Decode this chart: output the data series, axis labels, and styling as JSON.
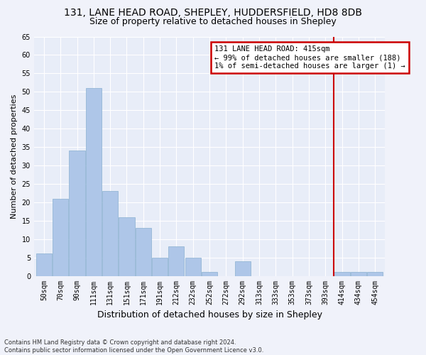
{
  "title1": "131, LANE HEAD ROAD, SHEPLEY, HUDDERSFIELD, HD8 8DB",
  "title2": "Size of property relative to detached houses in Shepley",
  "xlabel": "Distribution of detached houses by size in Shepley",
  "ylabel": "Number of detached properties",
  "footer1": "Contains HM Land Registry data © Crown copyright and database right 2024.",
  "footer2": "Contains public sector information licensed under the Open Government Licence v3.0.",
  "bar_labels": [
    "50sqm",
    "70sqm",
    "90sqm",
    "111sqm",
    "131sqm",
    "151sqm",
    "171sqm",
    "191sqm",
    "212sqm",
    "232sqm",
    "252sqm",
    "272sqm",
    "292sqm",
    "313sqm",
    "333sqm",
    "353sqm",
    "373sqm",
    "393sqm",
    "414sqm",
    "434sqm",
    "454sqm"
  ],
  "bar_values": [
    6,
    21,
    34,
    51,
    23,
    16,
    13,
    5,
    8,
    5,
    1,
    0,
    4,
    0,
    0,
    0,
    0,
    0,
    1,
    1,
    1
  ],
  "bar_color": "#aec6e8",
  "bar_edge_color": "#8ab0d0",
  "vline_index": 18,
  "vline_color": "#cc0000",
  "annotation_title": "131 LANE HEAD ROAD: 415sqm",
  "annotation_line1": "← 99% of detached houses are smaller (188)",
  "annotation_line2": "1% of semi-detached houses are larger (1) →",
  "annotation_box_facecolor": "#ffffff",
  "annotation_box_edgecolor": "#cc0000",
  "ylim": [
    0,
    65
  ],
  "yticks": [
    0,
    5,
    10,
    15,
    20,
    25,
    30,
    35,
    40,
    45,
    50,
    55,
    60,
    65
  ],
  "bg_color": "#e8edf8",
  "grid_color": "#ffffff",
  "title1_fontsize": 10,
  "title2_fontsize": 9,
  "ylabel_fontsize": 8,
  "xlabel_fontsize": 9,
  "tick_fontsize": 7,
  "annotation_fontsize": 7.5,
  "footer_fontsize": 6
}
